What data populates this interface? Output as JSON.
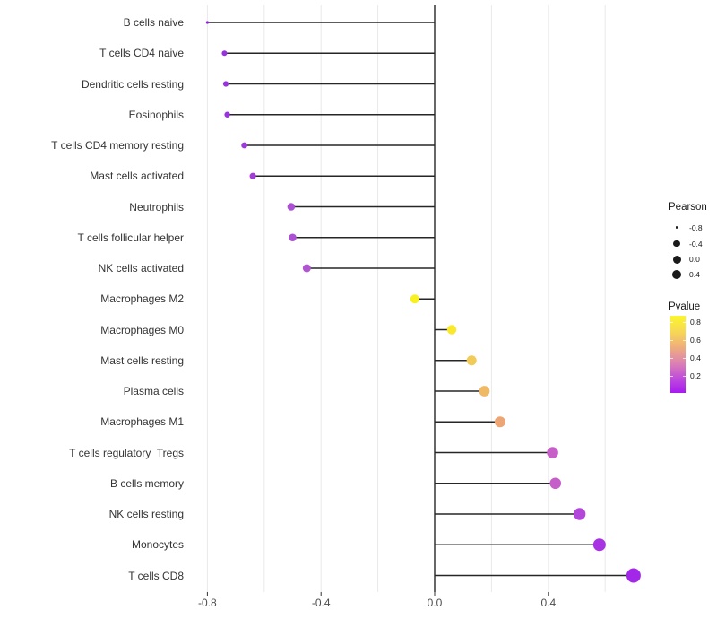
{
  "figure": {
    "background": "#FFFFFF"
  },
  "chart_data": {
    "type": "lollipop",
    "orientation": "horizontal",
    "title": "",
    "xlabel": "",
    "ylabel": "",
    "x_ticks": {
      "labels": [
        "-0.8",
        "-0.4",
        "0.0",
        "0.4"
      ],
      "values": [
        -0.8,
        -0.4,
        0.0,
        0.4
      ]
    },
    "minor_gridlines": [
      -0.8,
      -0.6,
      -0.4,
      -0.2,
      0.2,
      0.4,
      0.6
    ],
    "xlim": [
      -0.88,
      0.77
    ],
    "baseline": 0,
    "grid": "vertical-only",
    "categories": [
      "B cells naive",
      "T cells CD4 naive",
      "Dendritic cells resting",
      "Eosinophils",
      "T cells CD4 memory resting",
      "Mast cells activated",
      "Neutrophils",
      "T cells follicular helper",
      "NK cells activated",
      "Macrophages M2",
      "Macrophages M0",
      "Mast cells resting",
      "Plasma cells",
      "Macrophages M1",
      "T cells regulatory  Tregs",
      "B cells memory",
      "NK cells resting",
      "Monocytes",
      "T cells CD8"
    ],
    "points": [
      {
        "label": "B cells naive",
        "pearson": -0.8,
        "color": "#8F25D9",
        "dot_radius": 1.6
      },
      {
        "label": "T cells CD4 naive",
        "pearson": -0.74,
        "color": "#9632DE",
        "dot_radius": 3.0
      },
      {
        "label": "Dendritic cells resting",
        "pearson": -0.735,
        "color": "#9733DD",
        "dot_radius": 3.1
      },
      {
        "label": "Eosinophils",
        "pearson": -0.73,
        "color": "#9935DC",
        "dot_radius": 3.2
      },
      {
        "label": "T cells CD4 memory resting",
        "pearson": -0.67,
        "color": "#9D3AD9",
        "dot_radius": 3.4
      },
      {
        "label": "Mast cells activated",
        "pearson": -0.64,
        "color": "#A23ED7",
        "dot_radius": 3.6
      },
      {
        "label": "Neutrophils",
        "pearson": -0.505,
        "color": "#AC50D4",
        "dot_radius": 4.3
      },
      {
        "label": "T cells follicular helper",
        "pearson": -0.5,
        "color": "#AC50D4",
        "dot_radius": 4.3
      },
      {
        "label": "NK cells activated",
        "pearson": -0.45,
        "color": "#B156D2",
        "dot_radius": 4.5
      },
      {
        "label": "Macrophages M2",
        "pearson": -0.07,
        "color": "#F9F021",
        "dot_radius": 5.0
      },
      {
        "label": "Macrophages M0",
        "pearson": 0.06,
        "color": "#F9E92A",
        "dot_radius": 5.2
      },
      {
        "label": "Mast cells resting",
        "pearson": 0.13,
        "color": "#F2CA57",
        "dot_radius": 5.5
      },
      {
        "label": "Plasma cells",
        "pearson": 0.175,
        "color": "#EFB965",
        "dot_radius": 5.9
      },
      {
        "label": "Macrophages M1",
        "pearson": 0.23,
        "color": "#EDA573",
        "dot_radius": 6.0
      },
      {
        "label": "T cells regulatory  Tregs",
        "pearson": 0.415,
        "color": "#C75FC8",
        "dot_radius": 6.3
      },
      {
        "label": "B cells memory",
        "pearson": 0.425,
        "color": "#C65EC9",
        "dot_radius": 6.3
      },
      {
        "label": "NK cells resting",
        "pearson": 0.51,
        "color": "#B347DA",
        "dot_radius": 6.7
      },
      {
        "label": "Monocytes",
        "pearson": 0.58,
        "color": "#A833E3",
        "dot_radius": 7.0
      },
      {
        "label": "T cells CD8",
        "pearson": 0.7,
        "color": "#A227E9",
        "dot_radius": 8.0
      }
    ]
  },
  "legends": {
    "size": {
      "title": "Pearson",
      "dot_color": "#1A1A1A",
      "entries": [
        {
          "label": "-0.8",
          "radius": 1.3
        },
        {
          "label": "-0.4",
          "radius": 3.7
        },
        {
          "label": "0.0",
          "radius": 4.5
        },
        {
          "label": "0.4",
          "radius": 5.0
        }
      ]
    },
    "color": {
      "title": "Pvalue",
      "tick_labels": [
        "0.8",
        "0.6",
        "0.4",
        "0.2"
      ],
      "gradient_top_to_bottom": [
        "#FCF62B",
        "#F7D954",
        "#EFAF7B",
        "#DE85B0",
        "#C150D9",
        "#A81AF0"
      ]
    }
  },
  "colors": {
    "stem": "#262626",
    "baseline": "#262626",
    "gridline": "#E9E9E9",
    "axis_text": "#4D4D4D",
    "label_text": "#333333",
    "tick_mark": "#333333"
  }
}
